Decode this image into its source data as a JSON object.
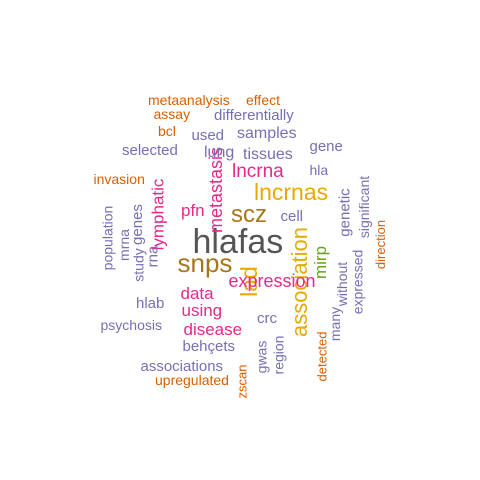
{
  "colors": {
    "orange": "#d95f02",
    "purple": "#7570b3",
    "magenta": "#e7298a",
    "green": "#66a61e",
    "gold": "#e6ab02",
    "brown": "#a6761d",
    "gray": "#555555"
  },
  "words": [
    {
      "text": "hlafas",
      "color": "gray",
      "rotate": 0
    },
    {
      "text": "snps",
      "color": "brown",
      "rotate": 0
    },
    {
      "text": "scz",
      "color": "brown",
      "rotate": 0
    },
    {
      "text": "lncrnas",
      "color": "gold",
      "rotate": 0
    },
    {
      "text": "association",
      "color": "gold",
      "rotate": -90
    },
    {
      "text": "lad",
      "color": "gold",
      "rotate": -90
    },
    {
      "text": "expression",
      "color": "magenta",
      "rotate": 0
    },
    {
      "text": "lncrna",
      "color": "magenta",
      "rotate": 0
    },
    {
      "text": "metastasis",
      "color": "magenta",
      "rotate": -90
    },
    {
      "text": "mirp",
      "color": "green",
      "rotate": -90
    },
    {
      "text": "data",
      "color": "magenta",
      "rotate": 0
    },
    {
      "text": "using",
      "color": "magenta",
      "rotate": 0
    },
    {
      "text": "disease",
      "color": "magenta",
      "rotate": 0
    },
    {
      "text": "lymphatic",
      "color": "magenta",
      "rotate": -90
    },
    {
      "text": "pfn",
      "color": "magenta",
      "rotate": 0
    },
    {
      "text": "samples",
      "color": "purple",
      "rotate": 0
    },
    {
      "text": "lung",
      "color": "purple",
      "rotate": 0
    },
    {
      "text": "tissues",
      "color": "purple",
      "rotate": 0
    },
    {
      "text": "differentially",
      "color": "purple",
      "rotate": 0
    },
    {
      "text": "used",
      "color": "purple",
      "rotate": 0
    },
    {
      "text": "gene",
      "color": "purple",
      "rotate": 0
    },
    {
      "text": "hla",
      "color": "purple",
      "rotate": 0
    },
    {
      "text": "selected",
      "color": "purple",
      "rotate": 0
    },
    {
      "text": "cell",
      "color": "purple",
      "rotate": 0
    },
    {
      "text": "genetic",
      "color": "purple",
      "rotate": -90
    },
    {
      "text": "significant",
      "color": "purple",
      "rotate": -90
    },
    {
      "text": "without",
      "color": "purple",
      "rotate": -90
    },
    {
      "text": "expressed",
      "color": "purple",
      "rotate": -90
    },
    {
      "text": "many",
      "color": "purple",
      "rotate": -90
    },
    {
      "text": "genes",
      "color": "purple",
      "rotate": -90
    },
    {
      "text": "mrna",
      "color": "purple",
      "rotate": -90
    },
    {
      "text": "rna",
      "color": "purple",
      "rotate": -90
    },
    {
      "text": "study",
      "color": "purple",
      "rotate": -90
    },
    {
      "text": "population",
      "color": "purple",
      "rotate": -90
    },
    {
      "text": "hlab",
      "color": "purple",
      "rotate": 0
    },
    {
      "text": "psychosis",
      "color": "purple",
      "rotate": 0
    },
    {
      "text": "crc",
      "color": "purple",
      "rotate": 0
    },
    {
      "text": "behçets",
      "color": "purple",
      "rotate": 0
    },
    {
      "text": "associations",
      "color": "purple",
      "rotate": 0
    },
    {
      "text": "gwas",
      "color": "purple",
      "rotate": -90
    },
    {
      "text": "region",
      "color": "purple",
      "rotate": -90
    },
    {
      "text": "metaanalysis",
      "color": "orange",
      "rotate": 0
    },
    {
      "text": "effect",
      "color": "orange",
      "rotate": 0
    },
    {
      "text": "assay",
      "color": "orange",
      "rotate": 0
    },
    {
      "text": "bcl",
      "color": "orange",
      "rotate": 0
    },
    {
      "text": "invasion",
      "color": "orange",
      "rotate": 0
    },
    {
      "text": "direction",
      "color": "orange",
      "rotate": -90
    },
    {
      "text": "detected",
      "color": "orange",
      "rotate": -90
    },
    {
      "text": "upregulated",
      "color": "orange",
      "rotate": 0
    },
    {
      "text": "zscan",
      "color": "orange",
      "rotate": -90
    }
  ]
}
